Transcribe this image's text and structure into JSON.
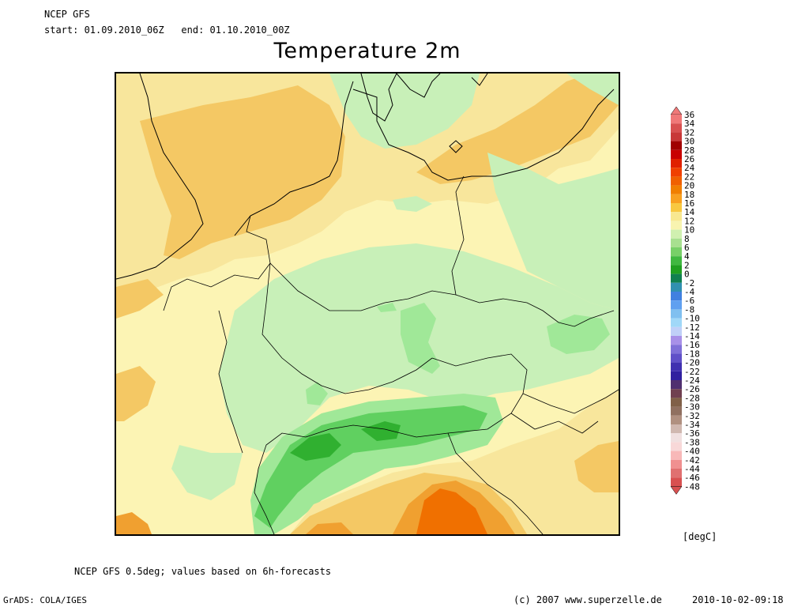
{
  "header": {
    "model": "NCEP GFS",
    "period": "start: 01.09.2010_06Z   end: 01.10.2010_00Z"
  },
  "title": "Temperature 2m",
  "colorbar": {
    "unit": "[degC]",
    "labels": [
      "36",
      "34",
      "32",
      "30",
      "28",
      "26",
      "24",
      "22",
      "20",
      "18",
      "16",
      "14",
      "12",
      "10",
      "8",
      "6",
      "4",
      "2",
      "0",
      "-2",
      "-4",
      "-6",
      "-8",
      "-10",
      "-12",
      "-14",
      "-16",
      "-18",
      "-20",
      "-22",
      "-24",
      "-26",
      "-28",
      "-30",
      "-32",
      "-34",
      "-36",
      "-38",
      "-40",
      "-42",
      "-44",
      "-46",
      "-48"
    ],
    "colors": [
      "#f07878",
      "#d85050",
      "#c83838",
      "#a00000",
      "#c80000",
      "#e02000",
      "#f04000",
      "#f06000",
      "#f07f00",
      "#f8a020",
      "#f8c840",
      "#f8e890",
      "#f8f4b0",
      "#d0f0b0",
      "#a8e090",
      "#78d068",
      "#40b840",
      "#20a020",
      "#108050",
      "#3090b0",
      "#4080e0",
      "#60a0f0",
      "#80c0f0",
      "#a0d8f8",
      "#c0d0f8",
      "#a890e8",
      "#8070d8",
      "#6050c8",
      "#4030b0",
      "#3020a0",
      "#503070",
      "#704050",
      "#806048",
      "#907060",
      "#b09080",
      "#d0b8b0",
      "#f0e0e0",
      "#f8d8d8",
      "#f8b8b8",
      "#f09090",
      "#e07070",
      "#d85050"
    ]
  },
  "map": {
    "region": "Central Europe",
    "palette": {
      "t8_10": "#c8f0b8",
      "t6_8": "#a0e898",
      "t4_6": "#60d060",
      "t2_4": "#30b030",
      "t12_14": "#fcf4b4",
      "t14_16": "#f8e69c",
      "t16_18": "#f4c864",
      "t18_20": "#f0a030",
      "t20_22": "#f07000",
      "t22_24": "#f05000"
    }
  },
  "footer": {
    "source": "NCEP GFS 0.5deg; values based on 6h-forecasts",
    "grads": "GrADS: COLA/IGES",
    "copyright": "(c) 2007 www.superzelle.de",
    "timestamp": "2010-10-02-09:18"
  }
}
